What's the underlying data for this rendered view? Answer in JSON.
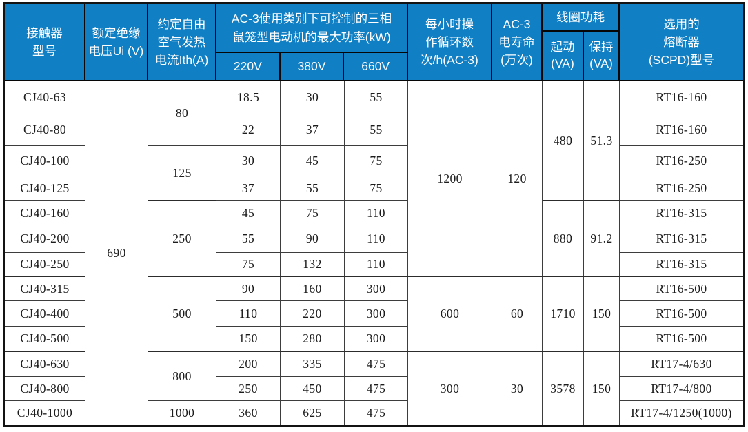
{
  "colors": {
    "header_bg": "#117fc4",
    "header_text": "#ffffff",
    "body_text": "#1c1c1c",
    "grid_line": "#3d3d3d",
    "outer_border": "#131313"
  },
  "header": {
    "contactor": "接触器\n型号",
    "insulation": "额定绝缘\n电压Ui (V)",
    "thermal": "约定自由\n空气发热\n电流Ith(A)",
    "power_group": "AC-3使用类别下可控制的三相\n鼠笼型电动机的最大功率(kW)",
    "voltages": [
      "220V",
      "380V",
      "660V"
    ],
    "ops": "每小时操\n作循环数\n次/h(AC-3)",
    "life": "AC-3\n电寿命\n(万次)",
    "coil_group": "线圈功耗",
    "coil_subs": [
      "起动\n(VA)",
      "保持\n(VA)"
    ],
    "fuse": "选用的\n熔断器\n(SCPD)型号"
  },
  "table": {
    "rows": [
      {
        "model": "CJ40-63",
        "p220": "18.5",
        "p380": "30",
        "p660": "55",
        "fuse": "RT16-160"
      },
      {
        "model": "CJ40-80",
        "p220": "22",
        "p380": "37",
        "p660": "55",
        "fuse": "RT16-160"
      },
      {
        "model": "CJ40-100",
        "p220": "30",
        "p380": "45",
        "p660": "75",
        "fuse": "RT16-250"
      },
      {
        "model": "CJ40-125",
        "p220": "37",
        "p380": "55",
        "p660": "75",
        "fuse": "RT16-250"
      },
      {
        "model": "CJ40-160",
        "p220": "45",
        "p380": "75",
        "p660": "110",
        "fuse": "RT16-315"
      },
      {
        "model": "CJ40-200",
        "p220": "55",
        "p380": "90",
        "p660": "110",
        "fuse": "RT16-315"
      },
      {
        "model": "CJ40-250",
        "p220": "75",
        "p380": "132",
        "p660": "110",
        "fuse": "RT16-315"
      },
      {
        "model": "CJ40-315",
        "p220": "90",
        "p380": "160",
        "p660": "300",
        "fuse": "RT16-500"
      },
      {
        "model": "CJ40-400",
        "p220": "110",
        "p380": "220",
        "p660": "300",
        "fuse": "RT16-500"
      },
      {
        "model": "CJ40-500",
        "p220": "150",
        "p380": "280",
        "p660": "300",
        "fuse": "RT16-500"
      },
      {
        "model": "CJ40-630",
        "p220": "200",
        "p380": "335",
        "p660": "475",
        "fuse": "RT17-4/630"
      },
      {
        "model": "CJ40-800",
        "p220": "250",
        "p380": "450",
        "p660": "475",
        "fuse": "RT17-4/800"
      },
      {
        "model": "CJ40-1000",
        "p220": "360",
        "p380": "625",
        "p660": "475",
        "fuse": "RT17-4/1250(1000)"
      }
    ],
    "merges": [
      {
        "field": "rated_insulation_voltage_v",
        "col": 2,
        "row": 1,
        "span": 13,
        "value": "690"
      },
      {
        "field": "thermal_current_a",
        "col": 3,
        "row": 1,
        "span": 2,
        "value": "80"
      },
      {
        "field": "thermal_current_a",
        "col": 3,
        "row": 3,
        "span": 2,
        "value": "125"
      },
      {
        "field": "thermal_current_a",
        "col": 3,
        "row": 5,
        "span": 3,
        "value": "250"
      },
      {
        "field": "thermal_current_a",
        "col": 3,
        "row": 8,
        "span": 3,
        "value": "500"
      },
      {
        "field": "thermal_current_a",
        "col": 3,
        "row": 11,
        "span": 2,
        "value": "800"
      },
      {
        "field": "thermal_current_a",
        "col": 3,
        "row": 13,
        "span": 1,
        "value": "1000"
      },
      {
        "field": "ops_cycles_per_hour_ac3",
        "col": 7,
        "row": 1,
        "span": 7,
        "value": "1200"
      },
      {
        "field": "ops_cycles_per_hour_ac3",
        "col": 7,
        "row": 8,
        "span": 3,
        "value": "600"
      },
      {
        "field": "ops_cycles_per_hour_ac3",
        "col": 7,
        "row": 11,
        "span": 3,
        "value": "300"
      },
      {
        "field": "electrical_life_10k",
        "col": 8,
        "row": 1,
        "span": 7,
        "value": "120"
      },
      {
        "field": "electrical_life_10k",
        "col": 8,
        "row": 8,
        "span": 3,
        "value": "60"
      },
      {
        "field": "electrical_life_10k",
        "col": 8,
        "row": 11,
        "span": 3,
        "value": "30"
      },
      {
        "field": "coil_start_va",
        "col": 9,
        "row": 1,
        "span": 4,
        "value": "480"
      },
      {
        "field": "coil_start_va",
        "col": 9,
        "row": 5,
        "span": 3,
        "value": "880"
      },
      {
        "field": "coil_start_va",
        "col": 9,
        "row": 8,
        "span": 3,
        "value": "1710"
      },
      {
        "field": "coil_start_va",
        "col": 9,
        "row": 11,
        "span": 3,
        "value": "3578"
      },
      {
        "field": "coil_hold_va",
        "col": 10,
        "row": 1,
        "span": 4,
        "value": "51.3"
      },
      {
        "field": "coil_hold_va",
        "col": 10,
        "row": 5,
        "span": 3,
        "value": "91.2"
      },
      {
        "field": "coil_hold_va",
        "col": 10,
        "row": 8,
        "span": 3,
        "value": "150"
      },
      {
        "field": "coil_hold_va",
        "col": 10,
        "row": 11,
        "span": 3,
        "value": "150"
      }
    ]
  }
}
